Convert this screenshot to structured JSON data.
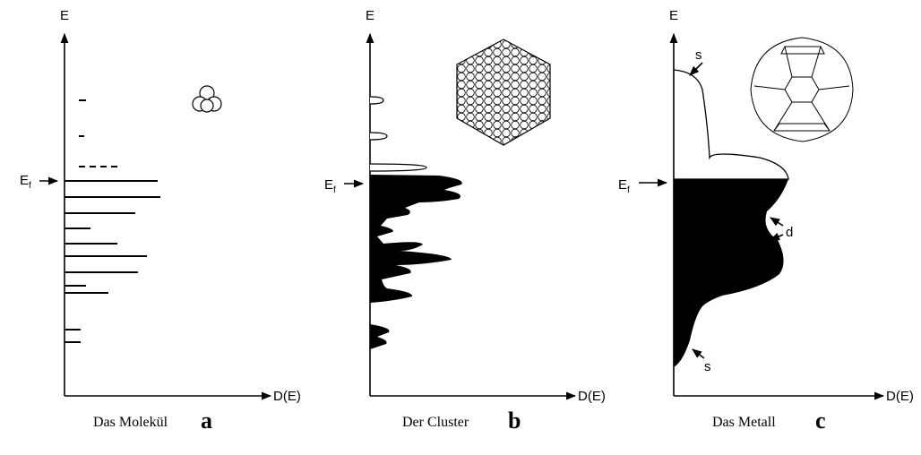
{
  "panels": [
    {
      "axis_y": "E",
      "axis_x": "D(E)",
      "fermi": "E",
      "fermi_sub": "f",
      "caption": "Das Molekül",
      "letter": "a"
    },
    {
      "axis_y": "E",
      "axis_x": "D(E)",
      "fermi": "E",
      "fermi_sub": "f",
      "caption": "Der Cluster",
      "letter": "b"
    },
    {
      "axis_y": "E",
      "axis_x": "D(E)",
      "fermi": "E",
      "fermi_sub": "f",
      "labels": [
        "s",
        "d",
        "s"
      ],
      "caption": "Das Metall",
      "letter": "c"
    }
  ]
}
